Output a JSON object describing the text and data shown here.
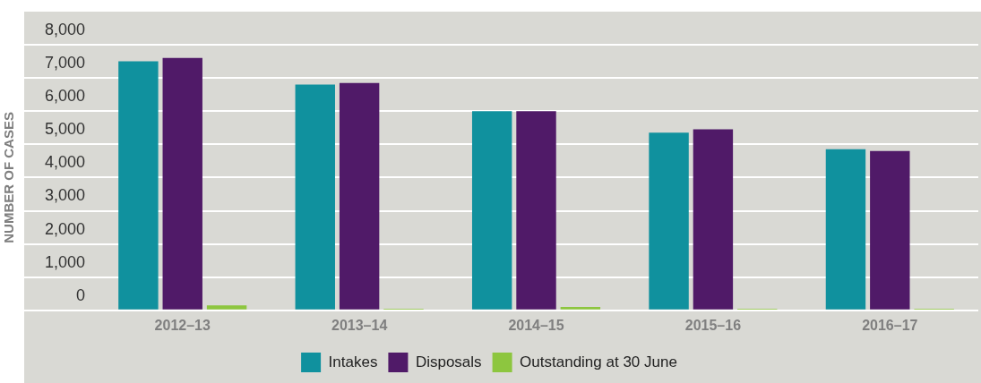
{
  "chart_data": {
    "type": "bar",
    "ylabel": "NUMBER OF CASES",
    "categories": [
      "2012–13",
      "2013–14",
      "2014–15",
      "2015–16",
      "2016–17"
    ],
    "series": [
      {
        "name": "Intakes",
        "color": "#10919e",
        "values": [
          7500,
          6800,
          6000,
          5350,
          4850
        ]
      },
      {
        "name": "Disposals",
        "color": "#501a68",
        "values": [
          7600,
          6850,
          6000,
          5450,
          4800
        ]
      },
      {
        "name": "Outstanding at 30 June",
        "color": "#8dc63f",
        "values": [
          150,
          50,
          100,
          50,
          50
        ]
      }
    ],
    "ylim": [
      0,
      8000
    ],
    "yticks": [
      0,
      {
        "value": 1000,
        "label": "1,000"
      },
      {
        "value": 2000,
        "label": "2,000"
      },
      {
        "value": 3000,
        "label": "3,000"
      },
      {
        "value": 4000,
        "label": "4,000"
      },
      {
        "value": 5000,
        "label": "5,000"
      },
      {
        "value": 6000,
        "label": "6,000"
      },
      {
        "value": 7000,
        "label": "7,000"
      },
      {
        "value": 8000,
        "label": "8,000"
      }
    ],
    "grid": "y",
    "legend": "bottom"
  }
}
